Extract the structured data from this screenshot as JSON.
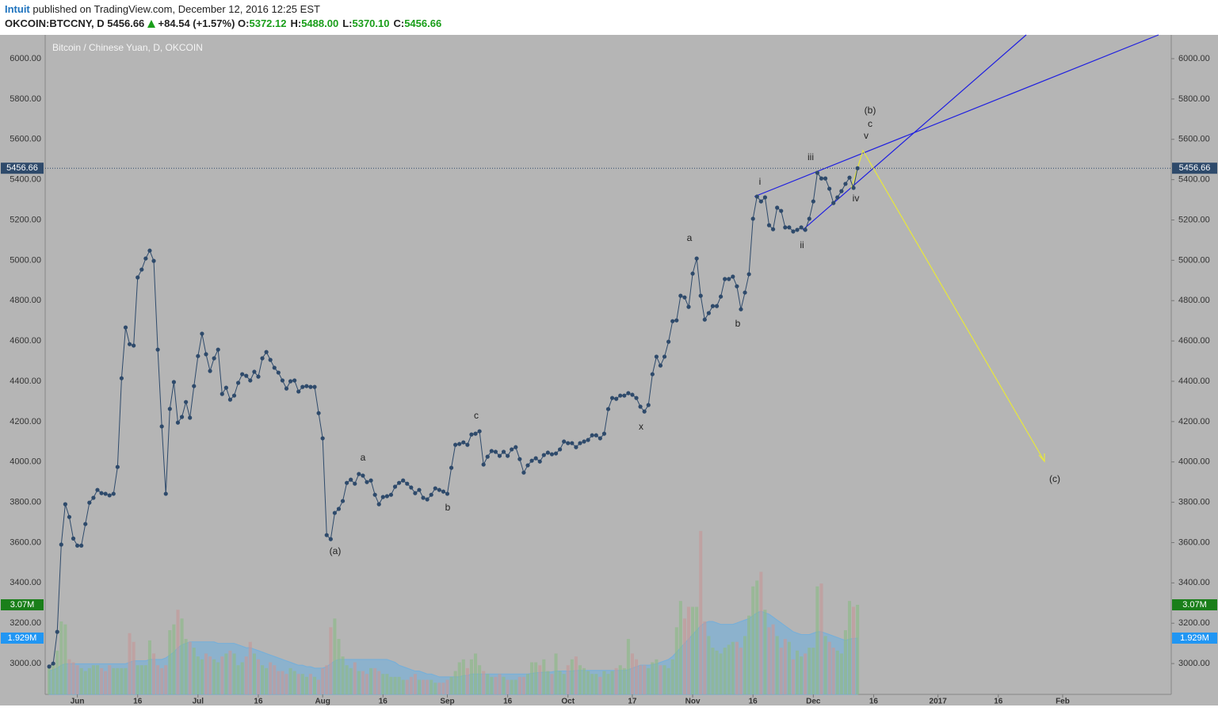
{
  "header": {
    "author": "Intuit",
    "published": "published on TradingView.com, December 12, 2016 12:25 EST",
    "symbol": "OKCOIN:BTCCNY, D",
    "last": "5456.66",
    "change": "+84.54 (+1.57%)",
    "ohlc": [
      {
        "label": "O:",
        "value": "5372.12"
      },
      {
        "label": "H:",
        "value": "5488.00"
      },
      {
        "label": "L:",
        "value": "5370.10"
      },
      {
        "label": "C:",
        "value": "5456.66"
      }
    ]
  },
  "chart_data": {
    "type": "line",
    "title": "Bitcoin / Chinese Yuan, D, OKCOIN",
    "x": [
      "2016-05-25",
      "2016-05-26",
      "2016-05-27",
      "2016-05-28",
      "2016-05-29",
      "2016-05-30",
      "2016-05-31",
      "2016-06-01",
      "2016-06-02",
      "2016-06-03",
      "2016-06-04",
      "2016-06-05",
      "2016-06-06",
      "2016-06-07",
      "2016-06-08",
      "2016-06-09",
      "2016-06-10",
      "2016-06-11",
      "2016-06-12",
      "2016-06-13",
      "2016-06-14",
      "2016-06-15",
      "2016-06-16",
      "2016-06-17",
      "2016-06-18",
      "2016-06-19",
      "2016-06-20",
      "2016-06-21",
      "2016-06-22",
      "2016-06-23",
      "2016-06-24",
      "2016-06-25",
      "2016-06-26",
      "2016-06-27",
      "2016-06-28",
      "2016-06-29",
      "2016-06-30",
      "2016-07-01",
      "2016-07-02",
      "2016-07-03",
      "2016-07-04",
      "2016-07-05",
      "2016-07-06",
      "2016-07-07",
      "2016-07-08",
      "2016-07-09",
      "2016-07-10",
      "2016-07-11",
      "2016-07-12",
      "2016-07-13",
      "2016-07-14",
      "2016-07-15",
      "2016-07-16",
      "2016-07-17",
      "2016-07-18",
      "2016-07-19",
      "2016-07-20",
      "2016-07-21",
      "2016-07-22",
      "2016-07-23",
      "2016-07-24",
      "2016-07-25",
      "2016-07-26",
      "2016-07-27",
      "2016-07-28",
      "2016-07-29",
      "2016-07-30",
      "2016-07-31",
      "2016-08-01",
      "2016-08-02",
      "2016-08-03",
      "2016-08-04",
      "2016-08-05",
      "2016-08-06",
      "2016-08-07",
      "2016-08-08",
      "2016-08-09",
      "2016-08-10",
      "2016-08-11",
      "2016-08-12",
      "2016-08-13",
      "2016-08-14",
      "2016-08-15",
      "2016-08-16",
      "2016-08-17",
      "2016-08-18",
      "2016-08-19",
      "2016-08-20",
      "2016-08-21",
      "2016-08-22",
      "2016-08-23",
      "2016-08-24",
      "2016-08-25",
      "2016-08-26",
      "2016-08-27",
      "2016-08-28",
      "2016-08-29",
      "2016-08-30",
      "2016-08-31",
      "2016-09-01",
      "2016-09-02",
      "2016-09-03",
      "2016-09-04",
      "2016-09-05",
      "2016-09-06",
      "2016-09-07",
      "2016-09-08",
      "2016-09-09",
      "2016-09-10",
      "2016-09-11",
      "2016-09-12",
      "2016-09-13",
      "2016-09-14",
      "2016-09-15",
      "2016-09-16",
      "2016-09-17",
      "2016-09-18",
      "2016-09-19",
      "2016-09-20",
      "2016-09-21",
      "2016-09-22",
      "2016-09-23",
      "2016-09-24",
      "2016-09-25",
      "2016-09-26",
      "2016-09-27",
      "2016-09-28",
      "2016-09-29",
      "2016-09-30",
      "2016-10-01",
      "2016-10-02",
      "2016-10-03",
      "2016-10-04",
      "2016-10-05",
      "2016-10-06",
      "2016-10-07",
      "2016-10-08",
      "2016-10-09",
      "2016-10-10",
      "2016-10-11",
      "2016-10-12",
      "2016-10-13",
      "2016-10-14",
      "2016-10-15",
      "2016-10-16",
      "2016-10-17",
      "2016-10-18",
      "2016-10-19",
      "2016-10-20",
      "2016-10-21",
      "2016-10-22",
      "2016-10-23",
      "2016-10-24",
      "2016-10-25",
      "2016-10-26",
      "2016-10-27",
      "2016-10-28",
      "2016-10-29",
      "2016-10-30",
      "2016-10-31",
      "2016-11-01",
      "2016-11-02",
      "2016-11-03",
      "2016-11-04",
      "2016-11-05",
      "2016-11-06",
      "2016-11-07",
      "2016-11-08",
      "2016-11-09",
      "2016-11-10",
      "2016-11-11",
      "2016-11-12",
      "2016-11-13",
      "2016-11-14",
      "2016-11-15",
      "2016-11-16",
      "2016-11-17",
      "2016-11-18",
      "2016-11-19",
      "2016-11-20",
      "2016-11-21",
      "2016-11-22",
      "2016-11-23",
      "2016-11-24",
      "2016-11-25",
      "2016-11-26",
      "2016-11-27",
      "2016-11-28",
      "2016-11-29",
      "2016-11-30",
      "2016-12-01",
      "2016-12-02",
      "2016-12-03",
      "2016-12-04",
      "2016-12-05",
      "2016-12-06",
      "2016-12-07",
      "2016-12-08",
      "2016-12-09",
      "2016-12-10",
      "2016-12-11",
      "2016-12-12"
    ],
    "series": [
      {
        "type": "line",
        "color": "#2e4a6b",
        "values": [
          2985,
          3000,
          3157,
          3590,
          3790,
          3727,
          3620,
          3585,
          3585,
          3692,
          3798,
          3822,
          3861,
          3845,
          3842,
          3834,
          3842,
          3975,
          4415,
          4667,
          4584,
          4577,
          4915,
          4954,
          5009,
          5048,
          4997,
          4557,
          4176,
          3842,
          4263,
          4396,
          4195,
          4223,
          4297,
          4219,
          4376,
          4525,
          4636,
          4534,
          4451,
          4514,
          4557,
          4337,
          4368,
          4309,
          4329,
          4392,
          4435,
          4427,
          4404,
          4447,
          4423,
          4514,
          4545,
          4506,
          4467,
          4443,
          4404,
          4364,
          4400,
          4404,
          4349,
          4372,
          4376,
          4372,
          4372,
          4242,
          4117,
          3637,
          3617,
          3747,
          3767,
          3806,
          3896,
          3912,
          3892,
          3940,
          3932,
          3900,
          3908,
          3837,
          3790,
          3826,
          3830,
          3837,
          3877,
          3896,
          3908,
          3892,
          3873,
          3845,
          3861,
          3822,
          3814,
          3837,
          3869,
          3861,
          3853,
          3842,
          3971,
          4085,
          4089,
          4097,
          4085,
          4136,
          4140,
          4152,
          3987,
          4026,
          4054,
          4050,
          4030,
          4050,
          4030,
          4062,
          4073,
          4014,
          3947,
          3983,
          4006,
          4018,
          4002,
          4034,
          4046,
          4038,
          4042,
          4062,
          4101,
          4093,
          4093,
          4073,
          4093,
          4101,
          4109,
          4132,
          4132,
          4117,
          4140,
          4262,
          4317,
          4313,
          4329,
          4329,
          4341,
          4333,
          4317,
          4274,
          4250,
          4282,
          4435,
          4522,
          4478,
          4522,
          4596,
          4698,
          4702,
          4824,
          4816,
          4769,
          4934,
          5009,
          4824,
          4706,
          4738,
          4773,
          4773,
          4820,
          4907,
          4907,
          4919,
          4871,
          4757,
          4840,
          4931,
          5206,
          5316,
          5292,
          5312,
          5174,
          5154,
          5261,
          5245,
          5163,
          5163,
          5143,
          5151,
          5163,
          5151,
          5206,
          5292,
          5434,
          5406,
          5406,
          5355,
          5284,
          5312,
          5343,
          5379,
          5410,
          5359,
          5456.66
        ]
      },
      {
        "type": "bar",
        "axis": "y2",
        "up_color": "#8fb98a",
        "down_color": "#c39a9a",
        "last_value_label": "3.07M",
        "label_color": "#1a7f1a",
        "values": [
          0.9,
          1.0,
          1.5,
          2.5,
          2.4,
          1.2,
          1.1,
          1.0,
          0.9,
          0.8,
          0.9,
          1.0,
          1.0,
          0.9,
          0.8,
          1.0,
          0.9,
          0.9,
          0.9,
          0.9,
          2.1,
          1.8,
          1.0,
          1.0,
          1.0,
          1.85,
          1.4,
          1.0,
          0.9,
          1.0,
          2.2,
          2.4,
          2.9,
          2.6,
          1.9,
          1.8,
          1.6,
          1.3,
          1.2,
          1.4,
          1.3,
          1.2,
          1.1,
          1.3,
          1.4,
          1.5,
          1.4,
          1.0,
          1.1,
          1.3,
          1.8,
          1.4,
          1.2,
          1.0,
          0.9,
          1.1,
          1.0,
          0.8,
          0.8,
          0.7,
          0.9,
          0.8,
          0.7,
          0.7,
          0.6,
          0.7,
          0.6,
          0.5,
          0.9,
          1.0,
          2.3,
          2.6,
          1.9,
          1.3,
          1.0,
          0.9,
          1.1,
          0.8,
          0.8,
          0.7,
          0.9,
          0.9,
          0.8,
          0.7,
          0.7,
          0.6,
          0.6,
          0.6,
          0.5,
          0.5,
          0.6,
          0.7,
          0.5,
          0.5,
          0.5,
          0.5,
          0.4,
          0.4,
          0.4,
          0.5,
          0.6,
          0.8,
          1.1,
          1.2,
          0.9,
          1.2,
          1.4,
          1.0,
          0.8,
          0.7,
          0.6,
          0.6,
          0.7,
          0.6,
          0.5,
          0.5,
          0.5,
          0.6,
          0.6,
          0.7,
          1.1,
          1.1,
          1.0,
          1.2,
          0.8,
          0.7,
          1.4,
          0.8,
          0.7,
          1.0,
          1.2,
          1.3,
          1.0,
          0.9,
          0.8,
          0.7,
          0.7,
          0.6,
          0.8,
          0.7,
          0.8,
          0.9,
          1.0,
          0.9,
          1.9,
          1.4,
          1.2,
          1.0,
          1.0,
          0.9,
          1.1,
          1.2,
          1.0,
          1.0,
          0.9,
          1.2,
          2.3,
          3.2,
          2.6,
          3.0,
          3.0,
          3.0,
          5.6,
          2.5,
          2.0,
          1.6,
          1.5,
          1.4,
          1.6,
          1.7,
          1.8,
          1.8,
          1.6,
          2.0,
          2.7,
          3.7,
          3.9,
          4.2,
          2.9,
          2.3,
          2.4,
          2.0,
          1.6,
          1.9,
          1.8,
          1.2,
          1.5,
          1.3,
          1.4,
          1.6,
          1.6,
          3.7,
          3.8,
          2.0,
          1.8,
          1.6,
          1.5,
          1.4,
          2.2,
          3.2,
          3.0,
          3.07
        ]
      },
      {
        "type": "area",
        "axis": "y2",
        "color": "#6aaee0",
        "last_value_label": "1.929M",
        "label_color": "#2196f3",
        "values": [
          0.8,
          0.85,
          0.9,
          1.0,
          1.05,
          1.05,
          1.05,
          1.05,
          1.05,
          1.05,
          1.05,
          1.05,
          1.05,
          1.05,
          1.05,
          1.05,
          1.05,
          1.05,
          1.05,
          1.05,
          1.1,
          1.15,
          1.15,
          1.15,
          1.15,
          1.2,
          1.2,
          1.2,
          1.2,
          1.25,
          1.35,
          1.45,
          1.6,
          1.7,
          1.75,
          1.8,
          1.8,
          1.8,
          1.8,
          1.8,
          1.8,
          1.8,
          1.75,
          1.75,
          1.75,
          1.75,
          1.75,
          1.7,
          1.65,
          1.6,
          1.6,
          1.55,
          1.5,
          1.45,
          1.4,
          1.35,
          1.3,
          1.25,
          1.2,
          1.15,
          1.1,
          1.05,
          1.0,
          1.0,
          0.95,
          0.95,
          0.9,
          0.9,
          0.9,
          0.95,
          1.05,
          1.15,
          1.2,
          1.2,
          1.2,
          1.2,
          1.2,
          1.2,
          1.2,
          1.2,
          1.2,
          1.2,
          1.2,
          1.2,
          1.2,
          1.15,
          1.1,
          1.0,
          0.95,
          0.9,
          0.85,
          0.8,
          0.8,
          0.75,
          0.7,
          0.7,
          0.65,
          0.6,
          0.6,
          0.6,
          0.6,
          0.6,
          0.6,
          0.65,
          0.65,
          0.7,
          0.7,
          0.7,
          0.7,
          0.7,
          0.7,
          0.7,
          0.7,
          0.7,
          0.7,
          0.7,
          0.7,
          0.7,
          0.7,
          0.7,
          0.72,
          0.74,
          0.75,
          0.76,
          0.76,
          0.77,
          0.8,
          0.8,
          0.8,
          0.8,
          0.8,
          0.82,
          0.82,
          0.82,
          0.82,
          0.82,
          0.82,
          0.82,
          0.82,
          0.82,
          0.82,
          0.82,
          0.82,
          0.82,
          0.85,
          0.9,
          0.95,
          1.0,
          1.0,
          1.0,
          1.02,
          1.05,
          1.1,
          1.15,
          1.2,
          1.3,
          1.45,
          1.6,
          1.75,
          1.9,
          2.05,
          2.2,
          2.35,
          2.45,
          2.5,
          2.5,
          2.45,
          2.4,
          2.4,
          2.4,
          2.4,
          2.45,
          2.5,
          2.55,
          2.6,
          2.7,
          2.8,
          2.85,
          2.8,
          2.75,
          2.65,
          2.55,
          2.45,
          2.35,
          2.25,
          2.15,
          2.1,
          2.05,
          2.05,
          2.05,
          2.1,
          2.15,
          2.15,
          2.1,
          2.05,
          2.0,
          1.95,
          1.9,
          1.85,
          1.9,
          1.92,
          1.929
        ]
      }
    ],
    "xlim": [
      "2016-05-24",
      "2017-02-28"
    ],
    "xticks": [
      {
        "value": "2016-06-01",
        "label": "Jun"
      },
      {
        "value": "2016-06-16",
        "label": "16"
      },
      {
        "value": "2016-07-01",
        "label": "Jul"
      },
      {
        "value": "2016-07-16",
        "label": "16"
      },
      {
        "value": "2016-08-01",
        "label": "Aug"
      },
      {
        "value": "2016-08-16",
        "label": "16"
      },
      {
        "value": "2016-09-01",
        "label": "Sep"
      },
      {
        "value": "2016-09-16",
        "label": "16"
      },
      {
        "value": "2016-10-01",
        "label": "Oct"
      },
      {
        "value": "2016-10-17",
        "label": "17"
      },
      {
        "value": "2016-11-01",
        "label": "Nov"
      },
      {
        "value": "2016-11-16",
        "label": "16"
      },
      {
        "value": "2016-12-01",
        "label": "Dec"
      },
      {
        "value": "2016-12-16",
        "label": "16"
      },
      {
        "value": "2017-01-01",
        "label": "2017"
      },
      {
        "value": "2017-01-16",
        "label": "16"
      },
      {
        "value": "2017-02-01",
        "label": "Feb"
      }
    ],
    "ylim": [
      2847,
      6118
    ],
    "yticks": [
      {
        "value": 3000,
        "label": "3000.00"
      },
      {
        "value": 3200,
        "label": "3200.00"
      },
      {
        "value": 3400,
        "label": "3400.00"
      },
      {
        "value": 3600,
        "label": "3600.00"
      },
      {
        "value": 3800,
        "label": "3800.00"
      },
      {
        "value": 4000,
        "label": "4000.00"
      },
      {
        "value": 4200,
        "label": "4200.00"
      },
      {
        "value": 4400,
        "label": "4400.00"
      },
      {
        "value": 4600,
        "label": "4600.00"
      },
      {
        "value": 4800,
        "label": "4800.00"
      },
      {
        "value": 5000,
        "label": "5000.00"
      },
      {
        "value": 5200,
        "label": "5200.00"
      },
      {
        "value": 5400,
        "label": "5400.00"
      },
      {
        "value": 5600,
        "label": "5600.00"
      },
      {
        "value": 5800,
        "label": "5800.00"
      },
      {
        "value": 6000,
        "label": "6000.00"
      }
    ],
    "y2lim": [
      0,
      22.6
    ],
    "last_label_color": "#2e4a6b",
    "annotations": [
      "(a)",
      "a",
      "b",
      "c",
      "x",
      "a",
      "b",
      "i",
      "ii",
      "iii",
      "iv",
      "v",
      "c",
      "(b)",
      "(c)"
    ]
  }
}
